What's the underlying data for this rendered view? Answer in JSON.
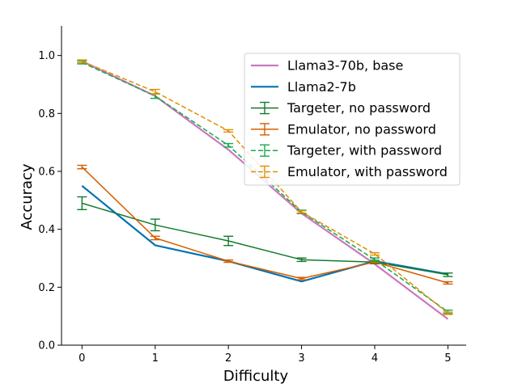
{
  "chart_data": {
    "type": "line",
    "title": "",
    "xlabel": "Difficulty",
    "ylabel": "Accuracy",
    "x": [
      0,
      1,
      2,
      3,
      4,
      5
    ],
    "xlim": [
      -0.28,
      5.25
    ],
    "ylim": [
      0.0,
      1.08
    ],
    "xticks": [
      0,
      1,
      2,
      3,
      4,
      5
    ],
    "xtick_labels": [
      "0",
      "1",
      "2",
      "3",
      "4",
      "5"
    ],
    "yticks": [
      0.0,
      0.2,
      0.4,
      0.6,
      0.8,
      1.0
    ],
    "ytick_labels": [
      "0.0",
      "0.2",
      "0.4",
      "0.6",
      "0.8",
      "1.0"
    ],
    "grid": false,
    "legend_position": "upper-right",
    "series": [
      {
        "name": "Llama3-70b, base",
        "values": [
          0.98,
          0.86,
          0.675,
          0.455,
          0.28,
          0.09
        ],
        "color": "#cc78bc",
        "style": "solid",
        "width": 2.2,
        "errors": null
      },
      {
        "name": "Llama2-7b",
        "values": [
          0.55,
          0.345,
          0.29,
          0.22,
          0.29,
          0.245
        ],
        "color": "#0173b2",
        "style": "solid",
        "width": 2.2,
        "errors": null
      },
      {
        "name": "Targeter, no password",
        "values": [
          0.49,
          0.415,
          0.36,
          0.295,
          0.287,
          0.243
        ],
        "color": "#137a2f",
        "style": "solid",
        "width": 1.5,
        "errors": [
          0.022,
          0.02,
          0.016,
          0.006,
          0.006,
          0.006
        ]
      },
      {
        "name": "Emulator, no password",
        "values": [
          0.615,
          0.37,
          0.29,
          0.23,
          0.287,
          0.215
        ],
        "color": "#d55e00",
        "style": "solid",
        "width": 1.5,
        "errors": [
          0.006,
          0.006,
          0.004,
          0.004,
          0.004,
          0.004
        ]
      },
      {
        "name": "Targeter, with password",
        "values": [
          0.976,
          0.86,
          0.69,
          0.46,
          0.295,
          0.115
        ],
        "color": "#18a84c",
        "style": "dashed",
        "width": 1.5,
        "errors": [
          0.005,
          0.008,
          0.006,
          0.006,
          0.006,
          0.006
        ]
      },
      {
        "name": "Emulator, with password",
        "values": [
          0.98,
          0.875,
          0.74,
          0.46,
          0.315,
          0.11
        ],
        "color": "#de8f05",
        "style": "dashed",
        "width": 1.5,
        "errors": [
          0.005,
          0.008,
          0.004,
          0.004,
          0.004,
          0.004
        ]
      }
    ]
  }
}
